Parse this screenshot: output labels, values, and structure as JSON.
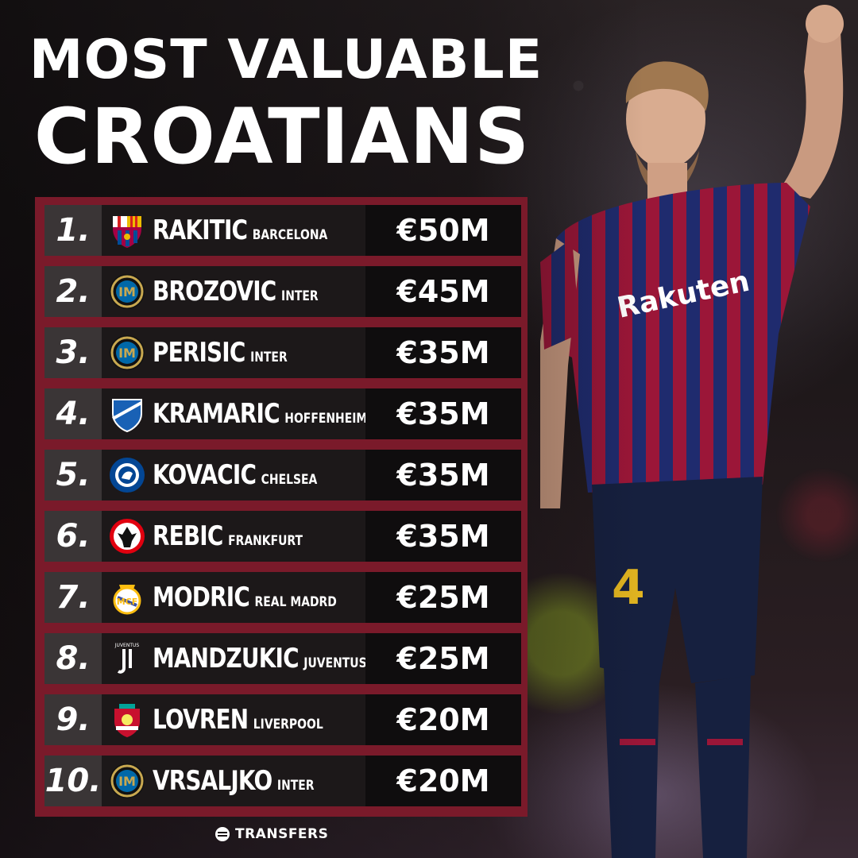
{
  "title_line1": "MOST VALUABLE",
  "title_line2": "CROATIANS",
  "rows": [
    {
      "rank": "1.",
      "name": "RAKITIC",
      "club": "BARCELONA",
      "value": "€50M",
      "badge": "barcelona-crest-icon"
    },
    {
      "rank": "2.",
      "name": "BROZOVIC",
      "club": "INTER",
      "value": "€45M",
      "badge": "inter-crest-icon"
    },
    {
      "rank": "3.",
      "name": "PERISIC",
      "club": "INTER",
      "value": "€35M",
      "badge": "inter-crest-icon"
    },
    {
      "rank": "4.",
      "name": "KRAMARIC",
      "club": "HOFFENHEIM",
      "value": "€35M",
      "badge": "hoffenheim-crest-icon"
    },
    {
      "rank": "5.",
      "name": "KOVACIC",
      "club": "CHELSEA",
      "value": "€35M",
      "badge": "chelsea-crest-icon"
    },
    {
      "rank": "6.",
      "name": "REBIC",
      "club": "FRANKFURT",
      "value": "€35M",
      "badge": "frankfurt-crest-icon"
    },
    {
      "rank": "7.",
      "name": "MODRIC",
      "club": "REAL MADRD",
      "value": "€25M",
      "badge": "real-madrid-crest-icon"
    },
    {
      "rank": "8.",
      "name": "MANDZUKIC",
      "club": "JUVENTUS",
      "value": "€25M",
      "badge": "juventus-crest-icon"
    },
    {
      "rank": "9.",
      "name": "LOVREN",
      "club": "LIVERPOOL",
      "value": "€20M",
      "badge": "liverpool-crest-icon"
    },
    {
      "rank": "10.",
      "name": "VRSALJKO",
      "club": "INTER",
      "value": "€20M",
      "badge": "inter-crest-icon"
    }
  ],
  "brand": "TRANSFERS",
  "colors": {
    "frame": "#7a1a2a",
    "row_rank_bg": "#3a3536",
    "row_body_bg": "#1c1819",
    "value_bg": "#0f0d0e",
    "text": "#ffffff"
  }
}
